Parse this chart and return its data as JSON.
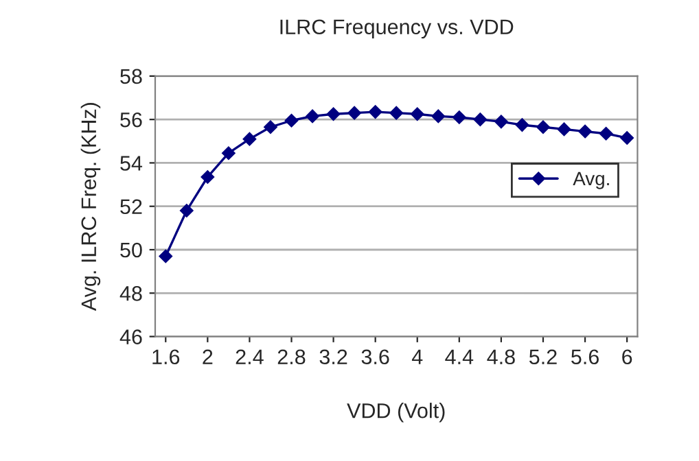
{
  "chart_data": {
    "type": "line",
    "title": "ILRC Frequency vs. VDD",
    "xlabel": "VDD (Volt)",
    "ylabel": "Avg. ILRC Freq. (KHz)",
    "x": [
      1.6,
      1.8,
      2.0,
      2.2,
      2.4,
      2.6,
      2.8,
      3.0,
      3.2,
      3.4,
      3.6,
      3.8,
      4.0,
      4.2,
      4.4,
      4.6,
      4.8,
      5.0,
      5.2,
      5.4,
      5.6,
      5.8,
      6.0
    ],
    "series": [
      {
        "name": "Avg.",
        "color": "#000080",
        "values": [
          49.7,
          51.8,
          53.35,
          54.45,
          55.1,
          55.65,
          55.95,
          56.15,
          56.25,
          56.3,
          56.35,
          56.3,
          56.25,
          56.15,
          56.1,
          56.0,
          55.9,
          55.75,
          55.65,
          55.55,
          55.45,
          55.35,
          55.15
        ]
      }
    ],
    "xlim": [
      1.5,
      6.1
    ],
    "xticks": [
      1.6,
      2,
      2.4,
      2.8,
      3.2,
      3.6,
      4,
      4.4,
      4.8,
      5.2,
      5.6,
      6
    ],
    "ylim": [
      46,
      58
    ],
    "yticks": [
      46,
      48,
      50,
      52,
      54,
      56,
      58
    ],
    "grid": "y",
    "legend": "center right",
    "marker": "diamond",
    "line_style": "solid"
  }
}
